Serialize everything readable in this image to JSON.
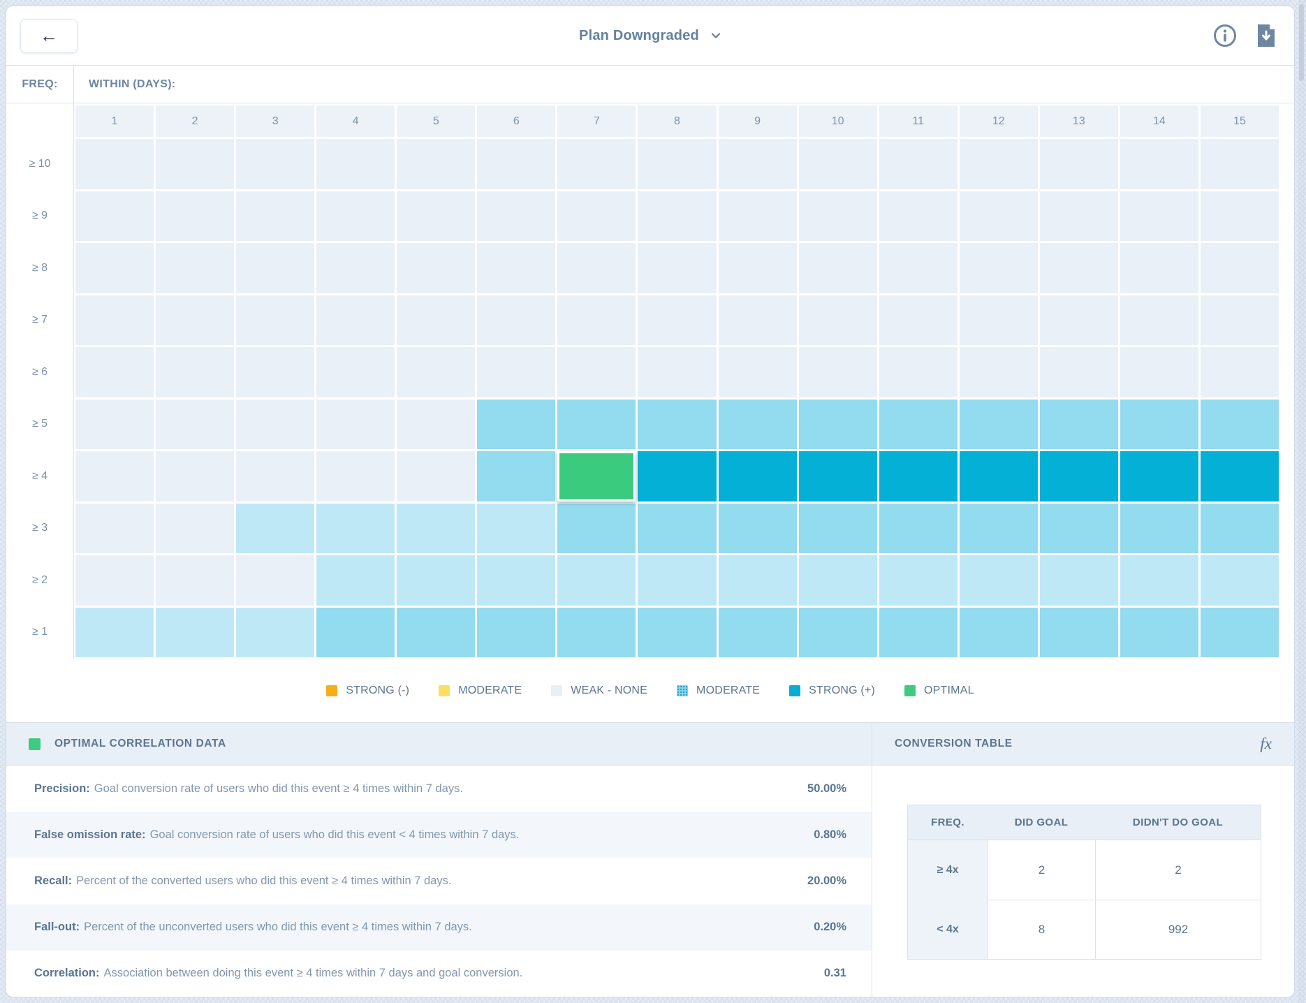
{
  "header": {
    "title": "Plan Downgraded",
    "back_icon": "arrow-left",
    "icons": [
      "info-icon",
      "download-icon"
    ]
  },
  "axis": {
    "freq_label": "FREQ:",
    "within_label": "WITHIN (DAYS):",
    "columns": [
      "1",
      "2",
      "3",
      "4",
      "5",
      "6",
      "7",
      "8",
      "9",
      "10",
      "11",
      "12",
      "13",
      "14",
      "15"
    ],
    "rows": [
      "≥ 10",
      "≥ 9",
      "≥ 8",
      "≥ 7",
      "≥ 6",
      "≥ 5",
      "≥ 4",
      "≥ 3",
      "≥ 2",
      "≥ 1"
    ]
  },
  "heatmap": {
    "palette": {
      "L": {
        "name": "weak-none",
        "color": "#e9f0f8"
      },
      "P": {
        "name": "moderate-low",
        "color": "#bfe8f7"
      },
      "M": {
        "name": "moderate",
        "color": "#93dbef"
      },
      "S": {
        "name": "strong-positive",
        "color": "#05b0d7"
      },
      "G": {
        "name": "optimal",
        "color": "#3bcb7f"
      }
    },
    "cells": [
      "LLLLLLLLLLLLLLL",
      "LLLLLLLLLLLLLLL",
      "LLLLLLLLLLLLLLL",
      "LLLLLLLLLLLLLLL",
      "LLLLLLLLLLLLLLL",
      "LLLLLMMMMMMMMMM",
      "LLLLLMGSSSSSSSS",
      "LLPPPPMMMMMMMMM",
      "LLLPPPPPPPPPPPP",
      "PPPMMMMMMMMMMMM"
    ],
    "optimal_cell": {
      "freq": "≥ 4",
      "day": "7"
    }
  },
  "legend": [
    {
      "label": "STRONG (-)",
      "color": "#f6ad17",
      "dotted": false
    },
    {
      "label": "MODERATE",
      "color": "#fbdf60",
      "dotted": false
    },
    {
      "label": "WEAK - NONE",
      "color": "#e9eff7",
      "dotted": false
    },
    {
      "label": "MODERATE",
      "color": "#7fd2ec",
      "dotted": true
    },
    {
      "label": "STRONG (+)",
      "color": "#09add4",
      "dotted": false
    },
    {
      "label": "OPTIMAL",
      "color": "#3ecb80",
      "dotted": false
    }
  ],
  "optimal_panel": {
    "title": "OPTIMAL CORRELATION DATA",
    "stats": [
      {
        "label": "Precision:",
        "description": "Goal conversion rate of users who did this event ≥ 4 times within 7 days.",
        "value": "50.00%"
      },
      {
        "label": "False omission rate:",
        "description": "Goal conversion rate of users who did this event < 4 times within 7 days.",
        "value": "0.80%"
      },
      {
        "label": "Recall:",
        "description": "Percent of the converted users who did this event ≥ 4 times within 7 days.",
        "value": "20.00%"
      },
      {
        "label": "Fall-out:",
        "description": "Percent of the unconverted users who did this event ≥ 4 times within 7 days.",
        "value": "0.20%"
      },
      {
        "label": "Correlation:",
        "description": "Association between doing this event ≥ 4 times within 7 days and goal conversion.",
        "value": "0.31"
      }
    ]
  },
  "conversion_panel": {
    "title": "CONVERSION TABLE",
    "fx_label": "fx",
    "table": {
      "headers": [
        "FREQ.",
        "DID GOAL",
        "DIDN'T DO GOAL"
      ],
      "rows": [
        {
          "freq": "≥ 4x",
          "did": "2",
          "didnt": "2"
        },
        {
          "freq": "< 4x",
          "did": "8",
          "didnt": "992"
        }
      ]
    }
  }
}
